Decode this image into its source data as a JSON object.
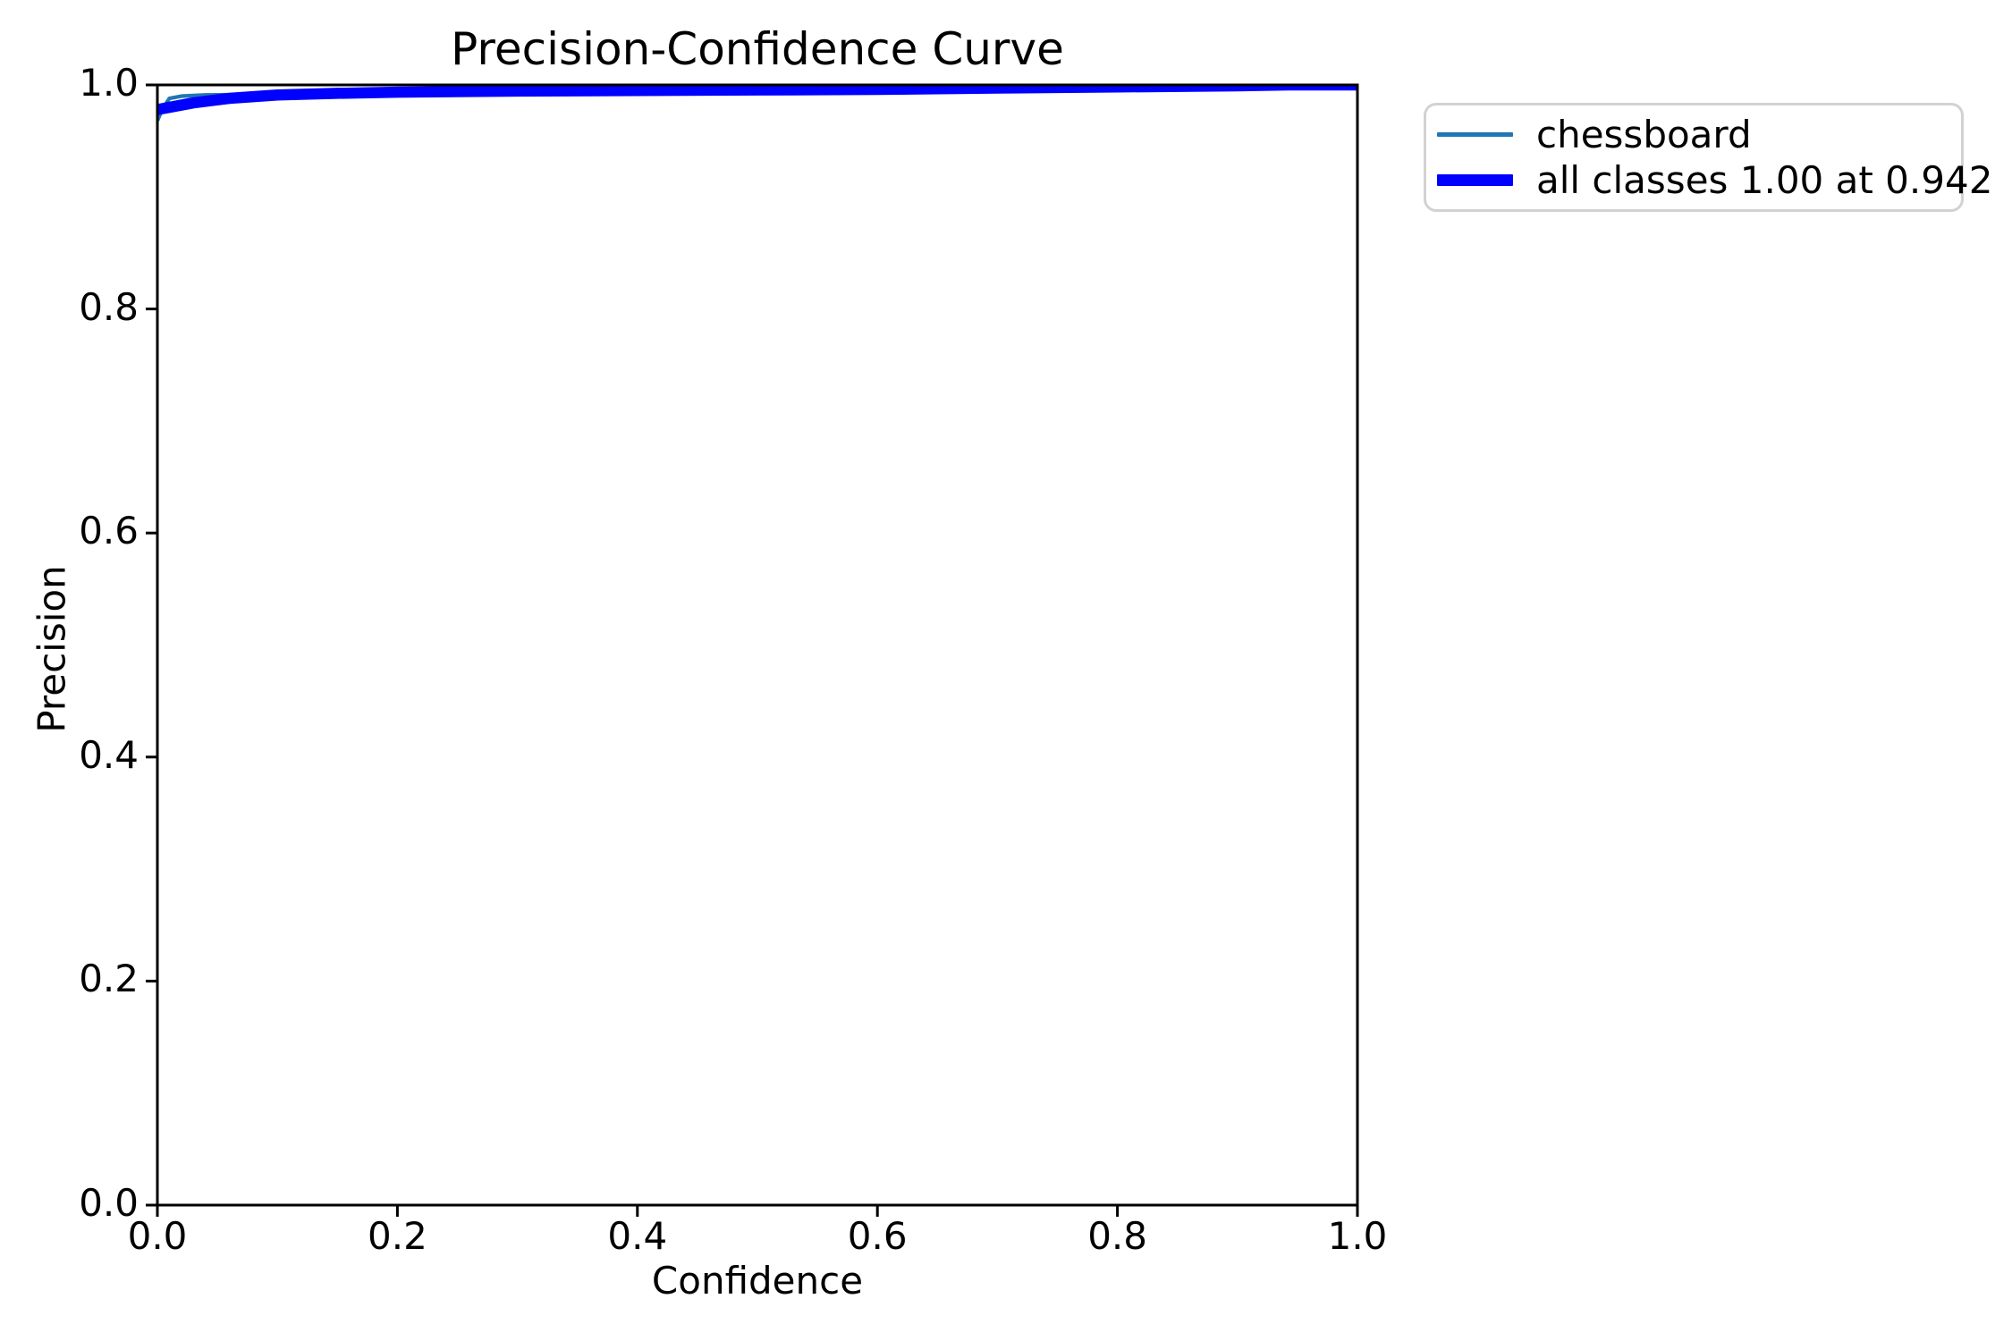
{
  "chart_data": {
    "type": "line",
    "title": "Precision-Confidence Curve",
    "xlabel": "Confidence",
    "ylabel": "Precision",
    "xlim": [
      0.0,
      1.0
    ],
    "ylim": [
      0.0,
      1.0
    ],
    "x_ticks": [
      "0.0",
      "0.2",
      "0.4",
      "0.6",
      "0.8",
      "1.0"
    ],
    "y_ticks": [
      "0.0",
      "0.2",
      "0.4",
      "0.6",
      "0.8",
      "1.0"
    ],
    "grid": false,
    "legend": {
      "position": "outside-upper-right",
      "entries": [
        "chessboard",
        "all classes 1.00 at 0.942"
      ]
    },
    "series": [
      {
        "name": "chessboard",
        "color": "#1f77b4",
        "style": "thin",
        "x": [
          0.0,
          0.004,
          0.01,
          0.02,
          0.04,
          0.08,
          0.15,
          0.3,
          0.5,
          0.7,
          0.9,
          0.942,
          1.0
        ],
        "y": [
          0.968,
          0.978,
          0.988,
          0.99,
          0.991,
          0.9915,
          0.993,
          0.9948,
          0.9958,
          0.9975,
          0.9993,
          1.0,
          1.0
        ]
      },
      {
        "name": "all classes 1.00 at 0.942",
        "color": "#0000ff",
        "style": "thick",
        "x": [
          0.0,
          0.01,
          0.03,
          0.06,
          0.1,
          0.15,
          0.2,
          0.3,
          0.4,
          0.5,
          0.6,
          0.7,
          0.8,
          0.9,
          0.942,
          1.0
        ],
        "y": [
          0.978,
          0.98,
          0.984,
          0.988,
          0.991,
          0.9925,
          0.9935,
          0.9945,
          0.995,
          0.9955,
          0.996,
          0.9972,
          0.9982,
          0.9992,
          1.0,
          1.0
        ]
      }
    ]
  }
}
